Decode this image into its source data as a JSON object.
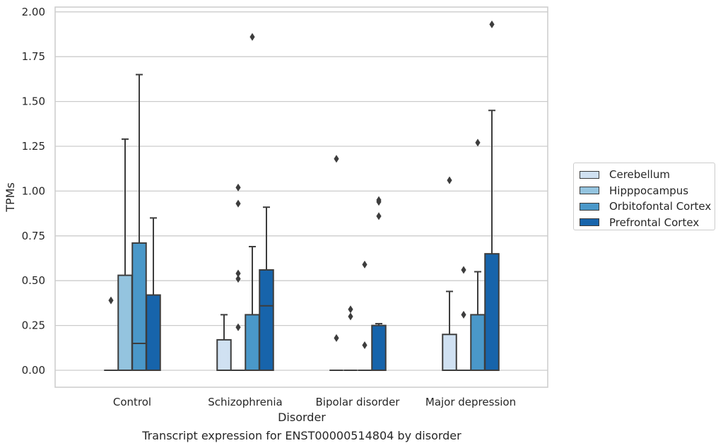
{
  "chart_data": {
    "type": "box",
    "title": "Transcript expression for ENST00000514804 by disorder",
    "xlabel": "Disorder",
    "ylabel": "TPMs",
    "ylim": [
      -0.09,
      2.03
    ],
    "yticks": [
      "0.00",
      "0.25",
      "0.50",
      "0.75",
      "1.00",
      "1.25",
      "1.50",
      "1.75",
      "2.00"
    ],
    "grid": true,
    "legend_position": "right",
    "categories": [
      "Control",
      "Schizophrenia",
      "Bipolar disorder",
      "Major depression"
    ],
    "series": [
      {
        "name": "Cerebellum",
        "color": "#d0e1f2",
        "boxes": [
          {
            "q1": 0,
            "median": 0,
            "q3": 0,
            "whisker_low": 0,
            "whisker_high": 0,
            "outliers": [
              0.39
            ]
          },
          {
            "q1": 0,
            "median": 0,
            "q3": 0.17,
            "whisker_low": 0,
            "whisker_high": 0.31,
            "outliers": []
          },
          {
            "q1": 0,
            "median": 0,
            "q3": 0,
            "whisker_low": 0,
            "whisker_high": 0,
            "outliers": [
              1.18,
              0.18
            ]
          },
          {
            "q1": 0,
            "median": 0,
            "q3": 0.2,
            "whisker_low": 0,
            "whisker_high": 0.44,
            "outliers": [
              1.06
            ]
          }
        ]
      },
      {
        "name": "Hipppocampus",
        "color": "#94c4df",
        "boxes": [
          {
            "q1": 0,
            "median": 0,
            "q3": 0.53,
            "whisker_low": 0,
            "whisker_high": 1.29,
            "outliers": []
          },
          {
            "q1": 0,
            "median": 0,
            "q3": 0,
            "whisker_low": 0,
            "whisker_high": 0,
            "outliers": [
              1.02,
              0.93,
              0.54,
              0.51,
              0.24
            ]
          },
          {
            "q1": 0,
            "median": 0,
            "q3": 0,
            "whisker_low": 0,
            "whisker_high": 0,
            "outliers": [
              0.34,
              0.3
            ]
          },
          {
            "q1": 0,
            "median": 0,
            "q3": 0,
            "whisker_low": 0,
            "whisker_high": 0,
            "outliers": [
              0.56,
              0.31
            ]
          }
        ]
      },
      {
        "name": "Orbitofontal Cortex",
        "color": "#4a98c9",
        "boxes": [
          {
            "q1": 0,
            "median": 0.15,
            "q3": 0.71,
            "whisker_low": 0,
            "whisker_high": 1.65,
            "outliers": []
          },
          {
            "q1": 0,
            "median": 0,
            "q3": 0.31,
            "whisker_low": 0,
            "whisker_high": 0.69,
            "outliers": [
              1.86
            ]
          },
          {
            "q1": 0,
            "median": 0,
            "q3": 0,
            "whisker_low": 0,
            "whisker_high": 0,
            "outliers": [
              0.59,
              0.14
            ]
          },
          {
            "q1": 0,
            "median": 0,
            "q3": 0.31,
            "whisker_low": 0,
            "whisker_high": 0.55,
            "outliers": [
              1.27
            ]
          }
        ]
      },
      {
        "name": "Prefrontal Cortex",
        "color": "#1764ab",
        "boxes": [
          {
            "q1": 0,
            "median": 0,
            "q3": 0.42,
            "whisker_low": 0,
            "whisker_high": 0.85,
            "outliers": []
          },
          {
            "q1": 0,
            "median": 0.36,
            "q3": 0.56,
            "whisker_low": 0,
            "whisker_high": 0.91,
            "outliers": []
          },
          {
            "q1": 0,
            "median": 0,
            "q3": 0.25,
            "whisker_low": 0,
            "whisker_high": 0.26,
            "outliers": [
              0.95,
              0.94,
              0.86
            ]
          },
          {
            "q1": 0,
            "median": 0,
            "q3": 0.65,
            "whisker_low": 0,
            "whisker_high": 1.45,
            "outliers": [
              1.93
            ]
          }
        ]
      }
    ]
  }
}
